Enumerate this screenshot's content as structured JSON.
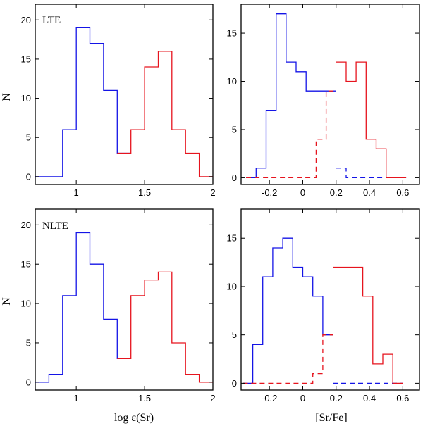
{
  "figure_labels": {
    "ylabel": "N",
    "xlabel_left": "log ε(Sr)",
    "xlabel_right": "[Sr/Fe]",
    "panel_top": "LTE",
    "panel_bottom": "NLTE"
  },
  "colors": {
    "blue": "#1414e6",
    "red": "#e6141e",
    "axes": "#000000"
  },
  "chart_data": [
    {
      "id": "lte-logeps",
      "type": "histogram",
      "label": "LTE",
      "xlabel": "log ε(Sr)",
      "ylabel": "N",
      "xlim": [
        0.7,
        2.0
      ],
      "ylim": [
        -1,
        22
      ],
      "xticks": [
        1,
        1.5,
        2
      ],
      "xtick_labels": [
        "1",
        "1.5",
        "2"
      ],
      "yticks": [
        0,
        5,
        10,
        15,
        20
      ],
      "ytick_labels": [
        "0",
        "5",
        "10",
        "15",
        "20"
      ],
      "series": [
        {
          "name": "blue",
          "color": "#1414e6",
          "dashed": false,
          "edges": [
            0.7,
            0.8,
            0.9,
            1.0,
            1.1,
            1.2,
            1.3,
            1.4
          ],
          "counts": [
            0,
            0,
            6,
            19,
            17,
            11,
            3
          ]
        },
        {
          "name": "red",
          "color": "#e6141e",
          "dashed": false,
          "edges": [
            1.3,
            1.4,
            1.5,
            1.6,
            1.7,
            1.8,
            1.9,
            2.0
          ],
          "counts": [
            3,
            6,
            14,
            16,
            6,
            3,
            0
          ]
        }
      ]
    },
    {
      "id": "lte-srfe",
      "type": "histogram",
      "xlabel": "[Sr/Fe]",
      "xlim": [
        -0.37,
        0.7
      ],
      "ylim": [
        -0.7,
        18
      ],
      "xticks": [
        -0.2,
        0,
        0.2,
        0.4,
        0.6
      ],
      "xtick_labels": [
        "-0.2",
        "0",
        "0.2",
        "0.4",
        "0.6"
      ],
      "yticks": [
        0,
        5,
        10,
        15
      ],
      "ytick_labels": [
        "0",
        "5",
        "10",
        "15"
      ],
      "series": [
        {
          "name": "blue",
          "color": "#1414e6",
          "dashed": false,
          "edges": [
            -0.34,
            -0.28,
            -0.22,
            -0.16,
            -0.1,
            -0.04,
            0.02,
            0.08,
            0.14,
            0.2
          ],
          "counts": [
            0,
            1,
            7,
            17,
            12,
            11,
            9,
            9,
            9
          ]
        },
        {
          "name": "blue-tail",
          "color": "#1414e6",
          "dashed": true,
          "edges": [
            0.2,
            0.26,
            0.32,
            0.38,
            0.44,
            0.5,
            0.56,
            0.62
          ],
          "counts": [
            1,
            0,
            0,
            0,
            0,
            0,
            0
          ]
        },
        {
          "name": "red-tail",
          "color": "#e6141e",
          "dashed": true,
          "edges": [
            -0.34,
            -0.28,
            -0.22,
            -0.16,
            -0.1,
            -0.04,
            0.02,
            0.08,
            0.14,
            0.2
          ],
          "counts": [
            0,
            0,
            0,
            0,
            0,
            0,
            0,
            4,
            9
          ]
        },
        {
          "name": "red",
          "color": "#e6141e",
          "dashed": false,
          "edges": [
            0.2,
            0.26,
            0.32,
            0.38,
            0.44,
            0.5,
            0.56,
            0.62
          ],
          "counts": [
            12,
            10,
            12,
            4,
            3,
            0,
            0
          ]
        }
      ]
    },
    {
      "id": "nlte-logeps",
      "type": "histogram",
      "label": "NLTE",
      "xlabel": "log ε(Sr)",
      "ylabel": "N",
      "xlim": [
        0.7,
        2.0
      ],
      "ylim": [
        -1,
        22
      ],
      "xticks": [
        1,
        1.5,
        2
      ],
      "xtick_labels": [
        "1",
        "1.5",
        "2"
      ],
      "yticks": [
        0,
        5,
        10,
        15,
        20
      ],
      "ytick_labels": [
        "0",
        "5",
        "10",
        "15",
        "20"
      ],
      "series": [
        {
          "name": "blue",
          "color": "#1414e6",
          "dashed": false,
          "edges": [
            0.7,
            0.8,
            0.9,
            1.0,
            1.1,
            1.2,
            1.3,
            1.4
          ],
          "counts": [
            0,
            1,
            11,
            19,
            15,
            8,
            3
          ]
        },
        {
          "name": "red",
          "color": "#e6141e",
          "dashed": false,
          "edges": [
            1.3,
            1.4,
            1.5,
            1.6,
            1.7,
            1.8,
            1.9,
            2.0
          ],
          "counts": [
            3,
            11,
            13,
            14,
            5,
            1,
            0
          ]
        }
      ]
    },
    {
      "id": "nlte-srfe",
      "type": "histogram",
      "xlabel": "[Sr/Fe]",
      "xlim": [
        -0.37,
        0.7
      ],
      "ylim": [
        -0.7,
        18
      ],
      "xticks": [
        -0.2,
        0,
        0.2,
        0.4,
        0.6
      ],
      "xtick_labels": [
        "-0.2",
        "0",
        "0.2",
        "0.4",
        "0.6"
      ],
      "yticks": [
        0,
        5,
        10,
        15
      ],
      "ytick_labels": [
        "0",
        "5",
        "10",
        "15"
      ],
      "series": [
        {
          "name": "blue",
          "color": "#1414e6",
          "dashed": false,
          "edges": [
            -0.36,
            -0.3,
            -0.24,
            -0.18,
            -0.12,
            -0.06,
            0.0,
            0.06,
            0.12,
            0.18
          ],
          "counts": [
            0,
            4,
            11,
            14,
            15,
            12,
            11,
            9,
            5
          ]
        },
        {
          "name": "blue-tail",
          "color": "#1414e6",
          "dashed": true,
          "edges": [
            0.18,
            0.24,
            0.3,
            0.36,
            0.42,
            0.48,
            0.54,
            0.6
          ],
          "counts": [
            0,
            0,
            0,
            0,
            0,
            0,
            0
          ]
        },
        {
          "name": "red-tail",
          "color": "#e6141e",
          "dashed": true,
          "edges": [
            -0.36,
            -0.3,
            -0.24,
            -0.18,
            -0.12,
            -0.06,
            0.0,
            0.06,
            0.12,
            0.18
          ],
          "counts": [
            0,
            0,
            0,
            0,
            0,
            0,
            0,
            1,
            5
          ]
        },
        {
          "name": "red",
          "color": "#e6141e",
          "dashed": false,
          "edges": [
            0.18,
            0.24,
            0.3,
            0.36,
            0.42,
            0.48,
            0.54,
            0.6
          ],
          "counts": [
            12,
            12,
            12,
            9,
            2,
            3,
            0
          ]
        }
      ]
    }
  ]
}
